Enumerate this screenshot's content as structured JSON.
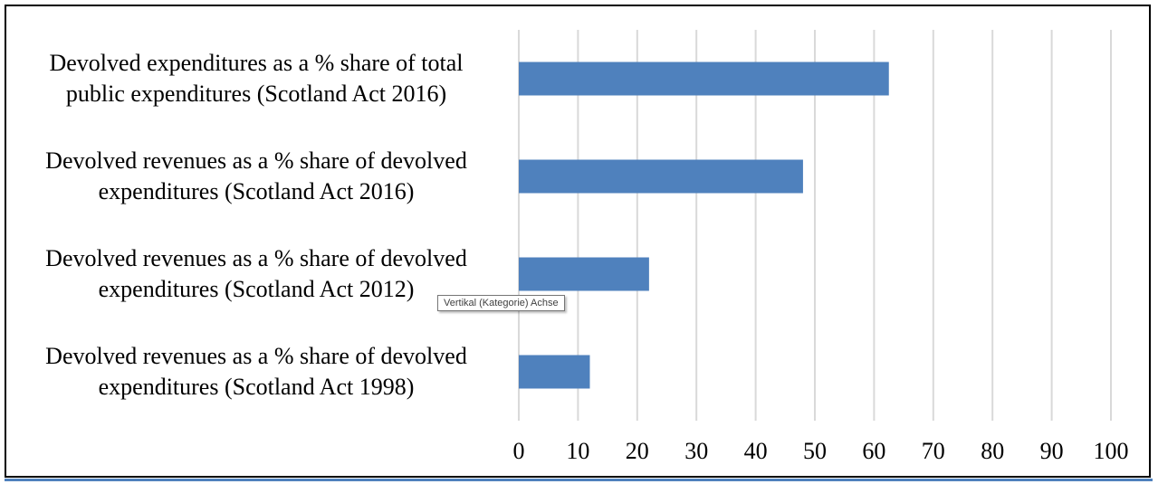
{
  "chart_data": {
    "type": "bar",
    "orientation": "horizontal",
    "categories": [
      [
        "Devolved expenditures as a % share of total",
        "public expenditures (Scotland Act 2016)"
      ],
      [
        "Devolved revenues as a % share of devolved",
        "expenditures (Scotland Act 2016)"
      ],
      [
        "Devolved revenues as a % share of devolved",
        "expenditures (Scotland Act 2012)"
      ],
      [
        "Devolved revenues as a % share of devolved",
        "expenditures (Scotland Act 1998)"
      ]
    ],
    "values": [
      62.5,
      48,
      22,
      12
    ],
    "xlim": [
      0,
      100
    ],
    "xticks": [
      0,
      10,
      20,
      30,
      40,
      50,
      60,
      70,
      80,
      90,
      100
    ],
    "grid": true,
    "bar_color": "#4f81bd",
    "grid_color": "#d9d9d9"
  },
  "tooltip": {
    "text": "Vertikal (Kategorie) Achse"
  }
}
